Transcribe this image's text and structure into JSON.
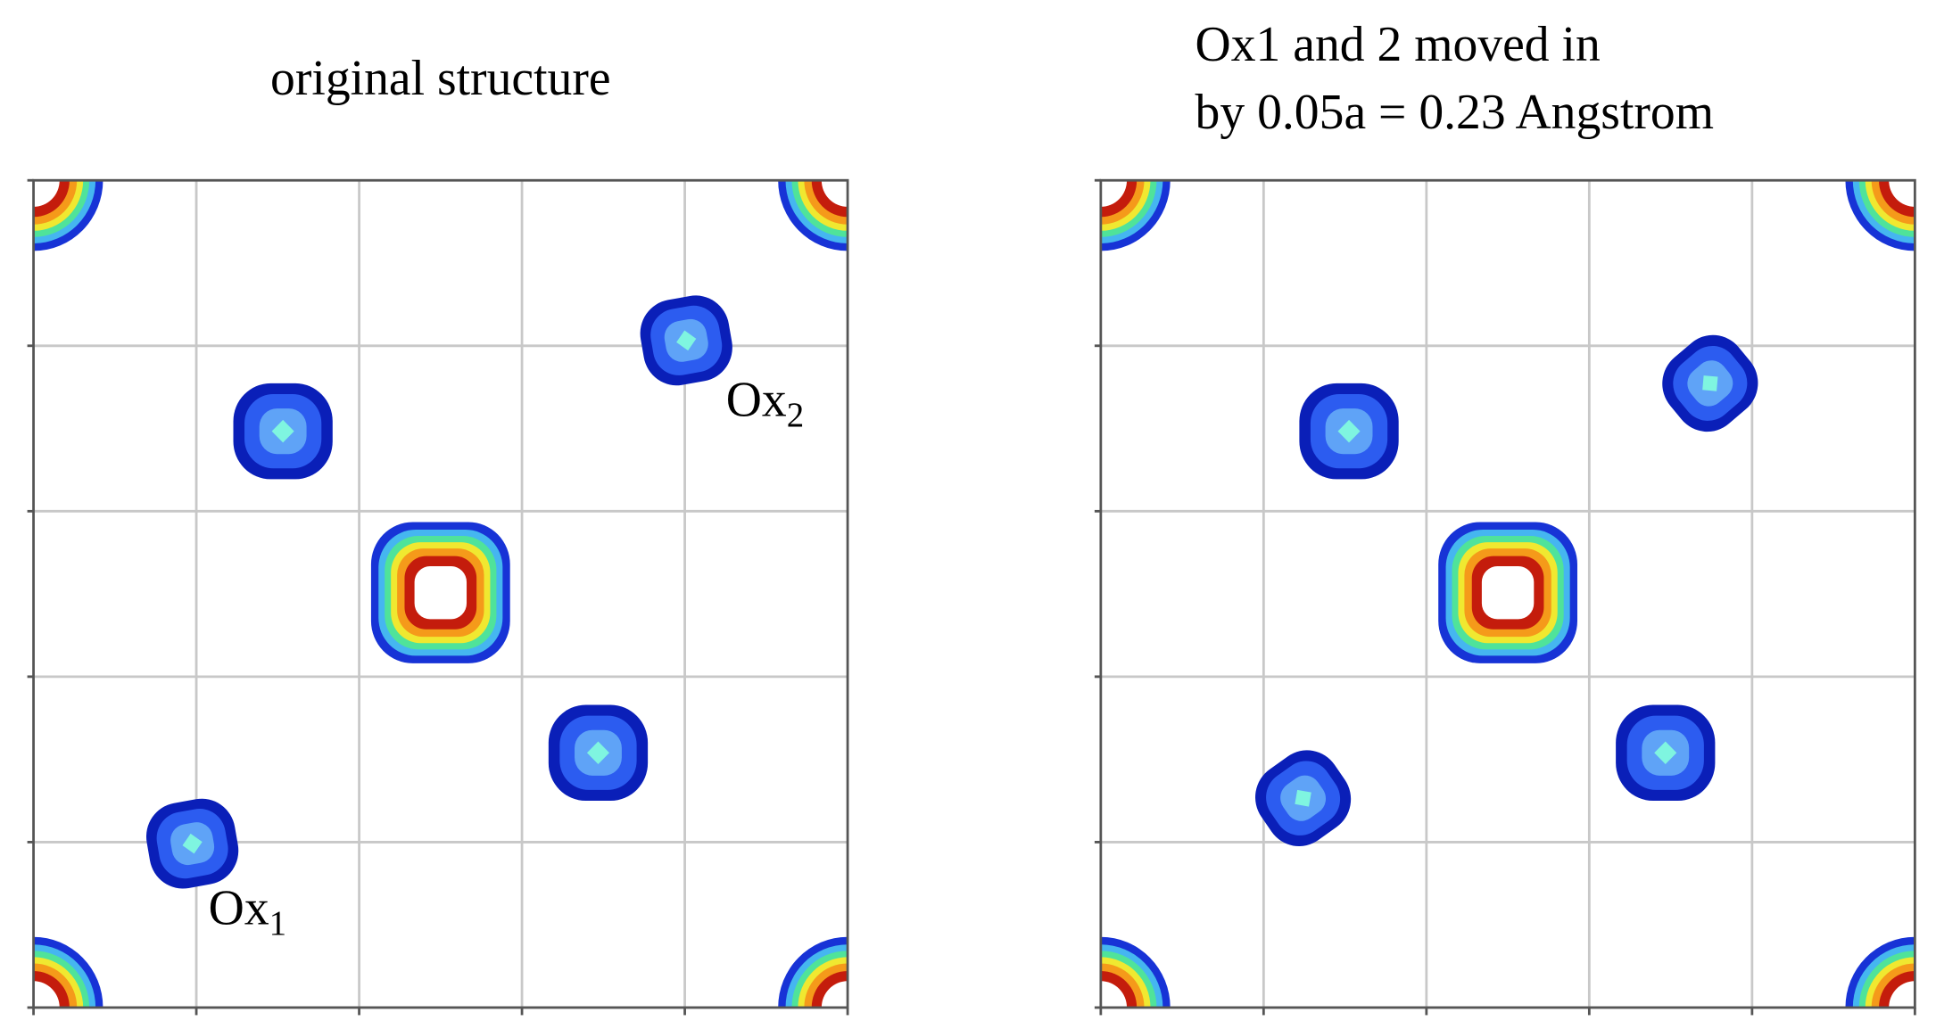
{
  "panels": [
    {
      "title_lines": [
        "original structure"
      ],
      "labels": [
        {
          "text": "Ox",
          "subscript": "2"
        },
        {
          "text": "Ox",
          "subscript": "1"
        }
      ]
    },
    {
      "title_lines": [
        "Ox1 and 2 moved in",
        "by 0.05a = 0.23 Angstrom"
      ],
      "labels": []
    }
  ]
}
